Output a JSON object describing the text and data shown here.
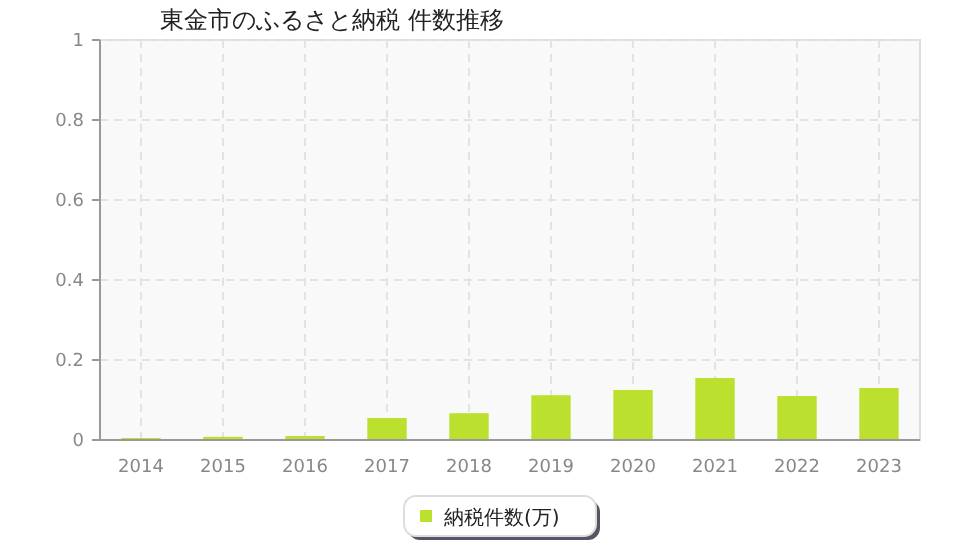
{
  "chart_data": {
    "type": "bar",
    "title": "東金市のふるさと納税 件数推移",
    "categories": [
      "2014",
      "2015",
      "2016",
      "2017",
      "2018",
      "2019",
      "2020",
      "2021",
      "2022",
      "2023"
    ],
    "series": [
      {
        "name": "納税件数(万)",
        "color": "#bbe02e",
        "values": [
          0.005,
          0.008,
          0.01,
          0.055,
          0.067,
          0.112,
          0.125,
          0.155,
          0.11,
          0.13
        ]
      }
    ],
    "ylim": [
      0,
      1
    ],
    "yticks": [
      0,
      {
        "value": 0.2,
        "label": "0.2"
      },
      {
        "value": 0.4,
        "label": "0.4"
      },
      {
        "value": 0.6,
        "label": "0.6"
      },
      {
        "value": 0.8,
        "label": "0.8"
      },
      1
    ],
    "grid": true,
    "legend": "bottom"
  }
}
